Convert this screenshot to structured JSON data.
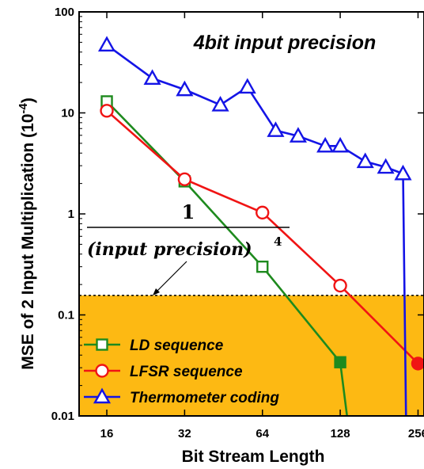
{
  "chart_data": {
    "type": "line",
    "xscale": "log2",
    "yscale": "log10",
    "xlim": [
      12.5,
      270
    ],
    "ylim": [
      0.01,
      100
    ],
    "xticks": [
      16,
      32,
      64,
      128,
      256
    ],
    "xtick_labels": [
      "16",
      "32",
      "64",
      "128",
      "256"
    ],
    "yticks": [
      0.01,
      0.1,
      1,
      10,
      100
    ],
    "ytick_labels": [
      "0.01",
      "0.1",
      "1",
      "10",
      "100"
    ],
    "xlabel": "Bit Stream Length",
    "ylabel_main": "MSE of 2 Input Multiplication (10",
    "ylabel_exp": "-4",
    "ylabel_close": ")",
    "annotation": "4bit input precision",
    "threshold": {
      "y": 0.156,
      "numerator": "1",
      "denominator": "(input precision)",
      "exponent": "4",
      "fill_color": "#FDB913",
      "line_style": "dotted"
    },
    "legend_position": "bottom-left",
    "series": [
      {
        "name": "LD sequence",
        "color": "#1E8A1E",
        "marker": "square",
        "x": [
          16,
          32,
          64,
          128,
          136
        ],
        "y": [
          13,
          2.1,
          0.3,
          0.034,
          0.01
        ],
        "marker_count": 4
      },
      {
        "name": "LFSR sequence",
        "color": "#F01414",
        "marker": "circle",
        "x": [
          16,
          32,
          64,
          128,
          256
        ],
        "y": [
          10.5,
          2.2,
          1.03,
          0.195,
          0.033
        ],
        "marker_count": 5
      },
      {
        "name": "Thermometer coding",
        "color": "#1414E6",
        "marker": "triangle",
        "x": [
          16,
          24,
          32,
          44,
          56,
          72,
          88,
          112,
          128,
          160,
          192,
          224,
          230
        ],
        "y": [
          47,
          22,
          17,
          12,
          18,
          6.7,
          5.9,
          4.7,
          4.7,
          3.3,
          2.9,
          2.5,
          0.01
        ],
        "marker_count": 12
      }
    ]
  }
}
